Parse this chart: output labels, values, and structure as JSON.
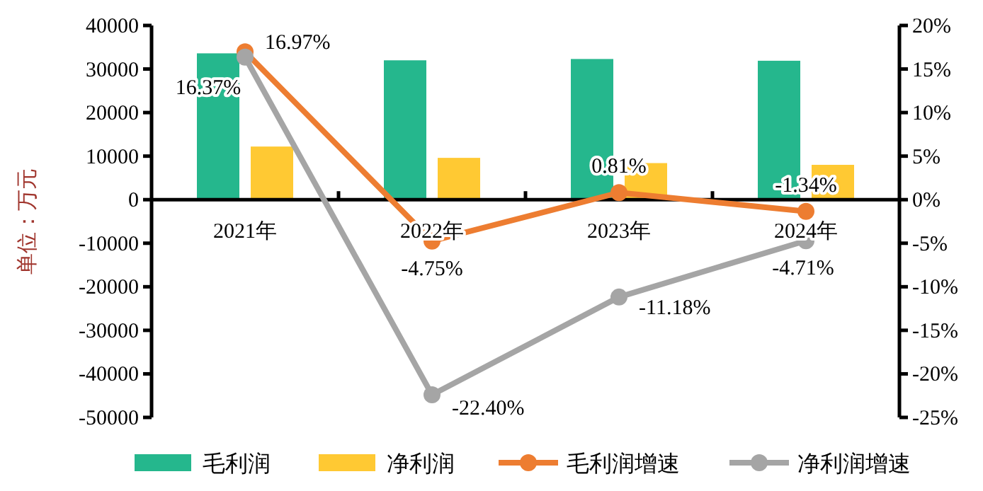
{
  "chart_data": {
    "type": "bar",
    "ylabel": "单位：万元",
    "categories": [
      "2021年",
      "2022年",
      "2023年",
      "2024年"
    ],
    "series": [
      {
        "name": "毛利润",
        "color": "#25b78d",
        "values": [
          33600,
          32000,
          32300,
          31900
        ]
      },
      {
        "name": "净利润",
        "color": "#ffc933",
        "values": [
          12200,
          9600,
          8400,
          8000
        ]
      },
      {
        "name": "毛利润增速",
        "type": "line",
        "axis": "y2",
        "color": "#ed7d31",
        "marker": "circle",
        "values": [
          16.97,
          -4.75,
          0.81,
          -1.34
        ],
        "value_labels": [
          "16.97%",
          "-4.75%",
          "0.81%",
          "-1.34%"
        ]
      },
      {
        "name": "净利润增速",
        "type": "line",
        "axis": "y2",
        "color": "#a5a5a5",
        "marker": "circle",
        "values": [
          16.37,
          -22.4,
          -11.18,
          -4.71
        ],
        "value_labels": [
          "16.37%",
          "-22.40%",
          "-11.18%",
          "-4.71%"
        ]
      }
    ],
    "ylim": [
      -50000,
      40000
    ],
    "yticks": [
      -50000,
      -40000,
      -30000,
      -20000,
      -10000,
      0,
      10000,
      20000,
      30000,
      40000
    ],
    "y2lim": [
      -25,
      20
    ],
    "y2ticks": [
      {
        "value": -25,
        "label": "-25%"
      },
      {
        "value": -20,
        "label": "-20%"
      },
      {
        "value": -15,
        "label": "-15%"
      },
      {
        "value": -10,
        "label": "-10%"
      },
      {
        "value": -5,
        "label": "-5%"
      },
      {
        "value": 0,
        "label": "0%"
      },
      {
        "value": 5,
        "label": "5%"
      },
      {
        "value": 10,
        "label": "10%"
      },
      {
        "value": 15,
        "label": "15%"
      },
      {
        "value": 20,
        "label": "20%"
      }
    ],
    "legend": "bottom"
  }
}
